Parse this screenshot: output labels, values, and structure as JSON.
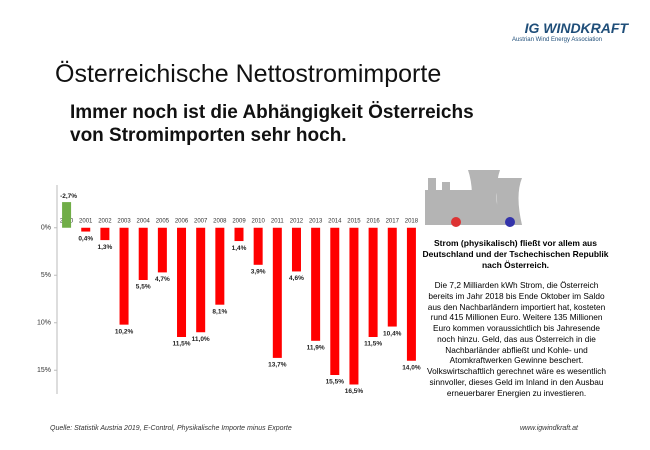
{
  "header": {
    "logo": "IG WINDKRAFT",
    "logo_subtitle": "Austrian Wind Energy Association",
    "title": "Österreichische Nettostromimporte",
    "subtitle_line1": "Immer noch ist die Abhängigkeit Österreichs",
    "subtitle_line2": "von Stromimporten sehr hoch."
  },
  "chart_data": {
    "type": "bar",
    "categories": [
      "2000",
      "2001",
      "2002",
      "2003",
      "2004",
      "2005",
      "2006",
      "2007",
      "2008",
      "2009",
      "2010",
      "2011",
      "2012",
      "2013",
      "2014",
      "2015",
      "2016",
      "2017",
      "2018"
    ],
    "values": [
      -2.7,
      0.4,
      1.3,
      10.2,
      5.5,
      4.7,
      11.5,
      11.0,
      8.1,
      1.4,
      3.9,
      13.7,
      4.6,
      11.9,
      15.5,
      16.5,
      11.5,
      10.4,
      14.0
    ],
    "value_labels": [
      "-2,7%",
      "0,4%",
      "1,3%",
      "10,2%",
      "5,5%",
      "4,7%",
      "11,5%",
      "11,0%",
      "8,1%",
      "1,4%",
      "3,9%",
      "13,7%",
      "4,6%",
      "11,9%",
      "15,5%",
      "16,5%",
      "11,5%",
      "10,4%",
      "14,0%"
    ],
    "colors": [
      "#70ad47",
      "#ff0000",
      "#ff0000",
      "#ff0000",
      "#ff0000",
      "#ff0000",
      "#ff0000",
      "#ff0000",
      "#ff0000",
      "#ff0000",
      "#ff0000",
      "#ff0000",
      "#ff0000",
      "#ff0000",
      "#ff0000",
      "#ff0000",
      "#ff0000",
      "#ff0000",
      "#ff0000"
    ],
    "ylim": [
      -4.5,
      17.5
    ],
    "y_inverted": true,
    "yticks": [
      {
        "value": 0,
        "label": "0%"
      },
      {
        "value": 5,
        "label": "5%"
      },
      {
        "value": 10,
        "label": "10%"
      },
      {
        "value": 15,
        "label": "15%"
      }
    ],
    "grid": false
  },
  "side": {
    "heading": "Strom (physikalisch) fließt vor allem aus Deutschland und der Tschechischen Republik nach Österreich.",
    "body": "Die 7,2 Milliarden kWh Strom, die Österreich bereits im Jahr 2018 bis Ende Oktober im Saldo aus den Nachbarländern importiert hat, kosteten rund 415 Millionen Euro. Weitere 135 Millionen Euro kommen voraussichtlich bis Jahresende noch hinzu. Geld, das aus Österreich in die Nachbarländer abfließt und Kohle- und Atomkraftwerken Gewinne beschert. Volkswirtschaftlich gerechnet wäre es wesentlich sinnvoller, dieses Geld im Inland in den Ausbau erneuerbarer Energien zu investieren."
  },
  "footer": {
    "source": "Quelle: Statistik Austria 2019, E-Control, Physikalische Importe minus Exporte",
    "url": "www.igwindkraft.at"
  }
}
